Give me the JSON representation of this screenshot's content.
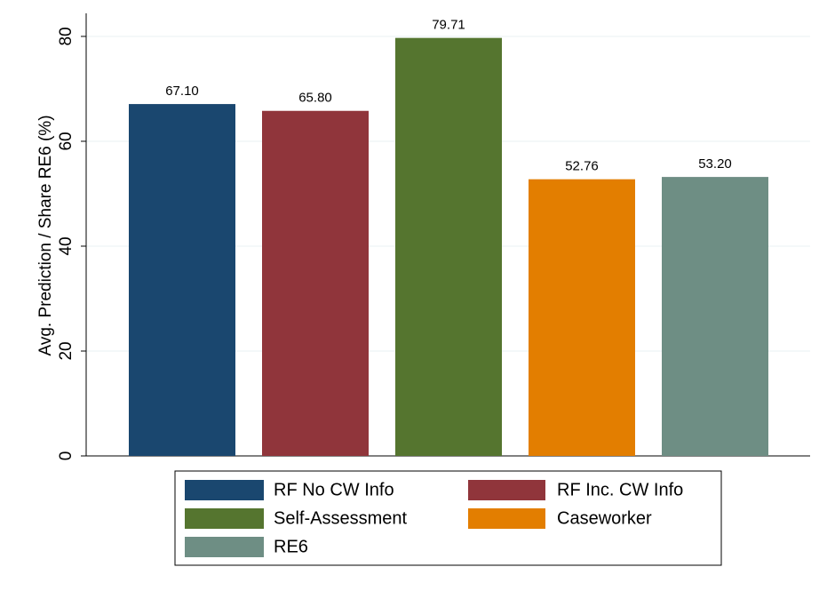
{
  "chart_data": {
    "type": "bar",
    "y_label": "Avg. Prediction / Share RE6 (%)",
    "series": [
      {
        "name": "RF No CW Info",
        "color": "#1a476f",
        "values": [
          67.1
        ],
        "value_labels": [
          "67.10"
        ]
      },
      {
        "name": "RF Inc. CW Info",
        "color": "#90353b",
        "values": [
          65.8
        ],
        "value_labels": [
          "65.80"
        ]
      },
      {
        "name": "Self-Assessment",
        "color": "#55752f",
        "values": [
          79.71
        ],
        "value_labels": [
          "79.71"
        ]
      },
      {
        "name": "Caseworker",
        "color": "#e37e00",
        "values": [
          52.76
        ],
        "value_labels": [
          "52.76"
        ]
      },
      {
        "name": "RE6",
        "color": "#6e8e84",
        "values": [
          53.2
        ],
        "value_labels": [
          "53.20"
        ]
      }
    ],
    "ylim": [
      0,
      84.4
    ],
    "yticks": [
      0,
      20,
      40,
      60,
      80
    ],
    "grid": true
  }
}
